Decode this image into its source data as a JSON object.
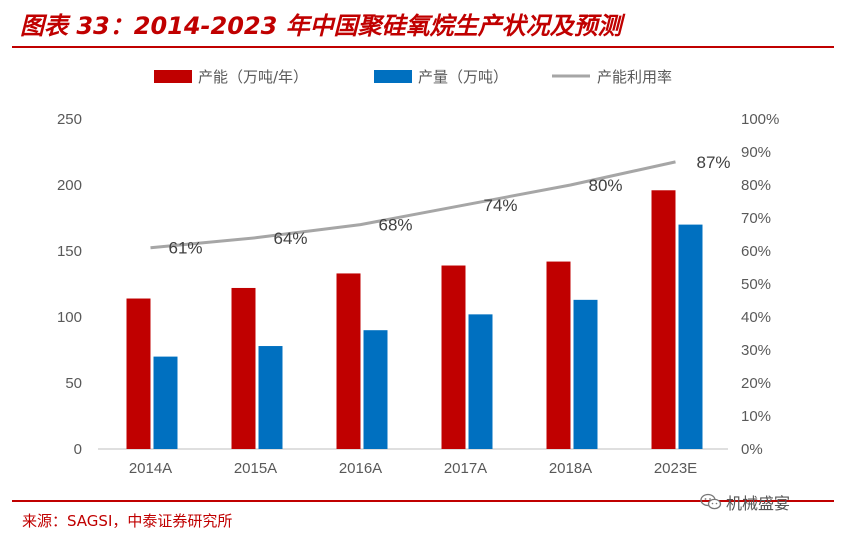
{
  "header": {
    "title": "图表 33：2014-2023 年中国聚硅氧烷生产状况及预测"
  },
  "footer": {
    "source": "来源：SAGSI，中泰证券研究所",
    "watermark": "机械盛宴"
  },
  "colors": {
    "capacity": "#c00000",
    "output": "#0070c0",
    "rate": "#a6a6a6",
    "accent": "#c00000"
  },
  "chart_data": {
    "type": "bar",
    "categories": [
      "2014A",
      "2015A",
      "2016A",
      "2017A",
      "2018A",
      "2023E"
    ],
    "series": [
      {
        "name": "产能（万吨/年）",
        "type": "bar",
        "axis": "left",
        "values": [
          114,
          122,
          133,
          139,
          142,
          196
        ]
      },
      {
        "name": "产量（万吨）",
        "type": "bar",
        "axis": "left",
        "values": [
          70,
          78,
          90,
          102,
          113,
          170
        ]
      },
      {
        "name": "产能利用率",
        "type": "line",
        "axis": "right",
        "values": [
          0.61,
          0.64,
          0.68,
          0.74,
          0.8,
          0.87
        ],
        "labels": [
          "61%",
          "64%",
          "68%",
          "74%",
          "80%",
          "87%"
        ]
      }
    ],
    "ylim": [
      0,
      250
    ],
    "yticks": [
      "0",
      "50",
      "100",
      "150",
      "200",
      "250"
    ],
    "y2lim": [
      0,
      1
    ],
    "y2ticks": [
      "0%",
      "10%",
      "20%",
      "30%",
      "40%",
      "50%",
      "60%",
      "70%",
      "80%",
      "90%",
      "100%"
    ],
    "legend_position": "top",
    "grid": false
  }
}
